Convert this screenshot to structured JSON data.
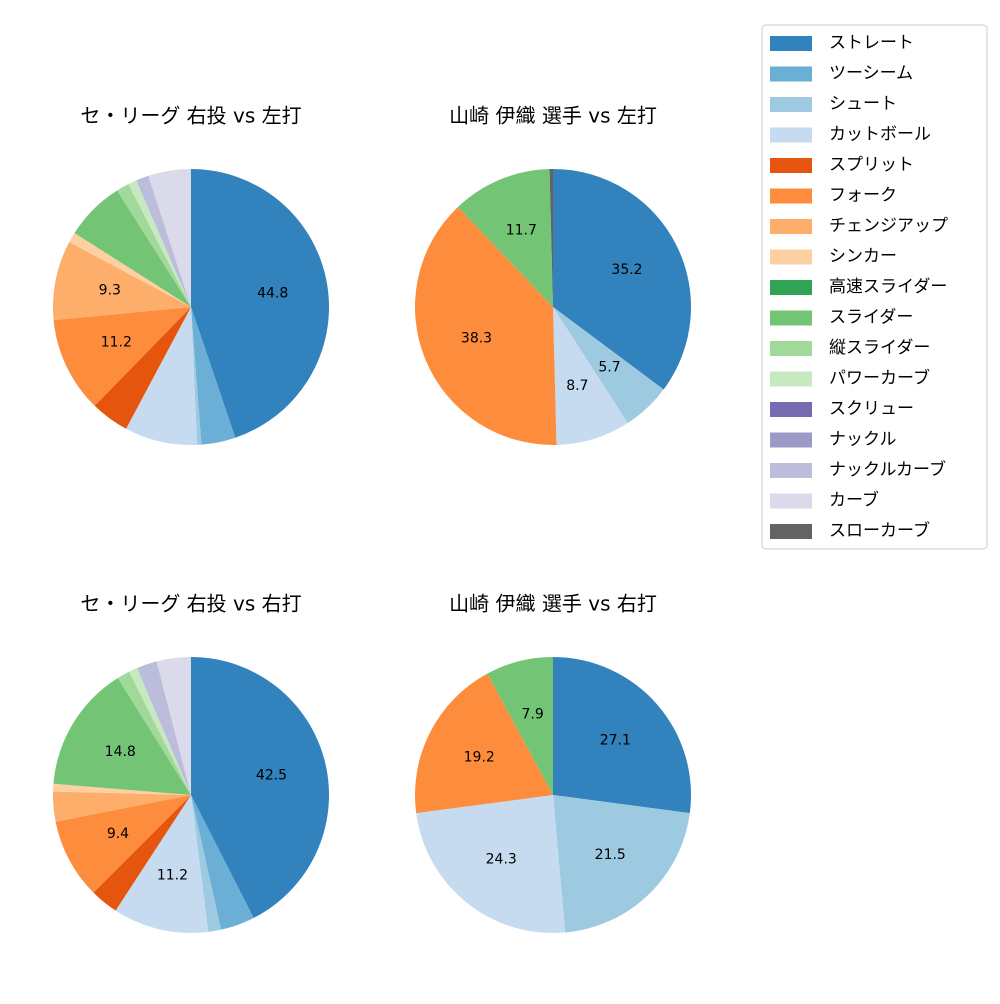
{
  "chart_data": [
    {
      "type": "pie",
      "title": "セ・リーグ 右投 vs 左打",
      "categories": [
        "ストレート",
        "ツーシーム",
        "シュート",
        "カットボール",
        "スプリット",
        "フォーク",
        "チェンジアップ",
        "シンカー",
        "スライダー",
        "縦スライダー",
        "パワーカーブ",
        "ナックルカーブ",
        "カーブ"
      ],
      "values": [
        44.8,
        4,
        0.5,
        8.5,
        4.5,
        11.2,
        9.3,
        1.2,
        7,
        1.5,
        1,
        1.5,
        5
      ],
      "value_labels": [
        "44.8",
        null,
        null,
        null,
        null,
        "11.2",
        "9.3",
        null,
        null,
        null,
        null,
        null,
        null
      ]
    },
    {
      "type": "pie",
      "title": "山崎 伊織 選手 vs 左打",
      "categories": [
        "ストレート",
        "シュート",
        "カットボール",
        "フォーク",
        "スライダー",
        "スローカーブ"
      ],
      "values": [
        35.2,
        5.7,
        8.7,
        38.3,
        11.7,
        0.4
      ],
      "value_labels": [
        "35.2",
        "5.7",
        "8.7",
        "38.3",
        "11.7",
        null
      ]
    },
    {
      "type": "pie",
      "title": "セ・リーグ 右投 vs 右打",
      "categories": [
        "ストレート",
        "ツーシーム",
        "シュート",
        "カットボール",
        "スプリット",
        "フォーク",
        "チェンジアップ",
        "シンカー",
        "スライダー",
        "縦スライダー",
        "パワーカーブ",
        "ナックルカーブ",
        "カーブ"
      ],
      "values": [
        42.5,
        4,
        1.5,
        11.2,
        3.3,
        9.4,
        3.5,
        0.9,
        14.8,
        1.5,
        1,
        2.4,
        4
      ],
      "value_labels": [
        "42.5",
        null,
        null,
        "11.2",
        null,
        "9.4",
        null,
        null,
        "14.8",
        null,
        null,
        null,
        null
      ]
    },
    {
      "type": "pie",
      "title": "山崎 伊織 選手 vs 右打",
      "categories": [
        "ストレート",
        "シュート",
        "カットボール",
        "フォーク",
        "スライダー"
      ],
      "values": [
        27.1,
        21.5,
        24.3,
        19.2,
        7.9
      ],
      "value_labels": [
        "27.1",
        "21.5",
        "24.3",
        "19.2",
        "7.9"
      ]
    }
  ],
  "legend": {
    "labels": [
      "ストレート",
      "ツーシーム",
      "シュート",
      "カットボール",
      "スプリット",
      "フォーク",
      "チェンジアップ",
      "シンカー",
      "高速スライダー",
      "スライダー",
      "縦スライダー",
      "パワーカーブ",
      "スクリュー",
      "ナックル",
      "ナックルカーブ",
      "カーブ",
      "スローカーブ"
    ],
    "colors": [
      "#3182bd",
      "#6baed6",
      "#9ecae1",
      "#c6dbef",
      "#e6550d",
      "#fd8d3c",
      "#fdae6b",
      "#fdd0a2",
      "#31a354",
      "#74c476",
      "#a1d99b",
      "#c7e9c0",
      "#756bb1",
      "#9e9ac8",
      "#bcbddc",
      "#dadaeb",
      "#636363"
    ]
  }
}
